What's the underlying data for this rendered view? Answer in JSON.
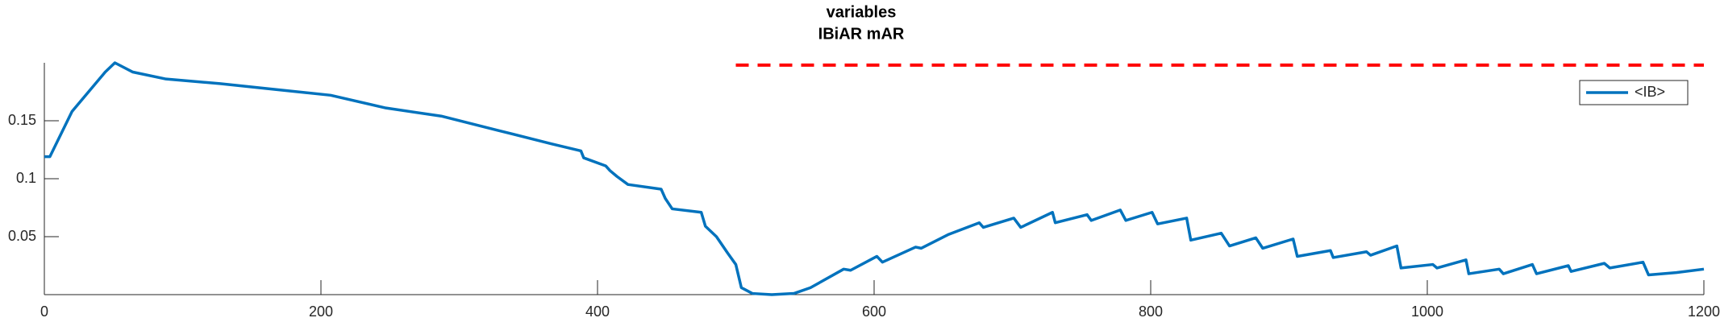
{
  "chart_data": {
    "type": "line",
    "title": [
      "variables",
      "IBiAR mAR"
    ],
    "x": [
      0,
      4,
      20,
      32,
      44,
      51,
      64,
      88,
      127,
      167,
      207,
      247,
      287,
      327,
      367,
      388,
      390,
      406,
      409,
      414,
      422,
      446,
      449,
      454,
      475,
      478,
      486,
      494,
      500,
      504,
      512,
      526,
      542,
      554,
      578,
      583,
      602,
      606,
      630,
      634,
      654,
      676,
      679,
      701,
      706,
      729,
      731,
      754,
      757,
      778,
      782,
      801,
      805,
      826,
      829,
      851,
      857,
      876,
      881,
      903,
      906,
      930,
      932,
      956,
      959,
      978,
      981,
      1004,
      1007,
      1028,
      1030,
      1052,
      1055,
      1076,
      1079,
      1102,
      1104,
      1128,
      1132,
      1156,
      1160,
      1180,
      1200
    ],
    "series": [
      {
        "name": "<IB>",
        "color": "#0072bd",
        "values": [
          0.119,
          0.119,
          0.158,
          0.175,
          0.192,
          0.2,
          0.192,
          0.186,
          0.182,
          0.177,
          0.172,
          0.161,
          0.154,
          0.142,
          0.13,
          0.124,
          0.118,
          0.111,
          0.107,
          0.102,
          0.095,
          0.091,
          0.083,
          0.074,
          0.071,
          0.059,
          0.05,
          0.036,
          0.026,
          0.006,
          0.001,
          0,
          0.001,
          0.006,
          0.022,
          0.021,
          0.033,
          0.028,
          0.041,
          0.04,
          0.052,
          0.062,
          0.058,
          0.066,
          0.058,
          0.071,
          0.062,
          0.069,
          0.064,
          0.073,
          0.064,
          0.071,
          0.061,
          0.066,
          0.047,
          0.053,
          0.042,
          0.049,
          0.04,
          0.048,
          0.033,
          0.038,
          0.032,
          0.037,
          0.034,
          0.042,
          0.023,
          0.026,
          0.023,
          0.03,
          0.018,
          0.022,
          0.018,
          0.026,
          0.018,
          0.025,
          0.02,
          0.027,
          0.023,
          0.028,
          0.017,
          0.019,
          0.022
        ]
      }
    ],
    "reference_line": {
      "value": 0.198,
      "x": [
        500,
        1200
      ],
      "color": "#ff0000"
    },
    "xlim": [
      0,
      1200
    ],
    "xticks": [
      0,
      200,
      400,
      600,
      800,
      1000,
      1200
    ],
    "ylim": [
      0,
      0.2
    ],
    "yticks": [
      0.05,
      0.1,
      0.15
    ],
    "legend": "northeast"
  }
}
